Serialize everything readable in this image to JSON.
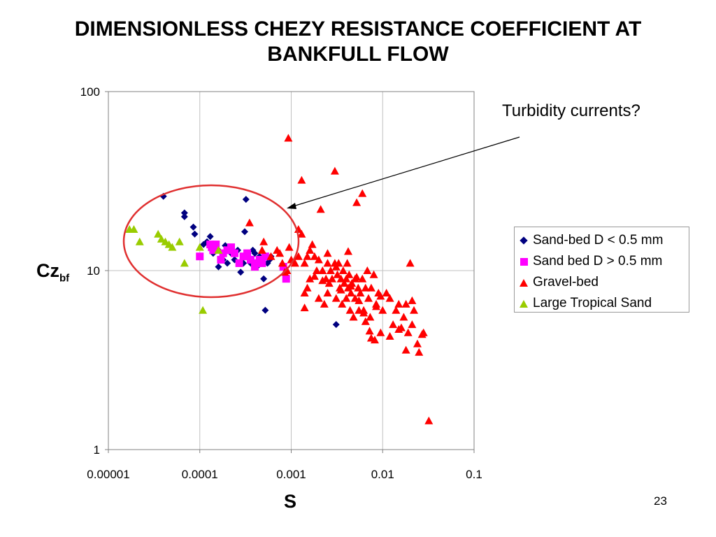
{
  "slide": {
    "title_line1": "DIMENSIONLESS CHEZY RESISTANCE COEFFICIENT AT",
    "title_line2": "BANKFULL FLOW",
    "page_number": "23",
    "annotation": "Turbidity currents?"
  },
  "colors": {
    "sand_small": "#000080",
    "sand_large": "#ff00ff",
    "gravel": "#ff0000",
    "tropical": "#99cc00",
    "ellipse": "#e03030"
  },
  "chart_data": {
    "type": "scatter",
    "title": "",
    "xlabel": "S",
    "ylabel_main": "Cz",
    "ylabel_sub": "bf",
    "xscale": "log",
    "yscale": "log",
    "xlim": [
      1e-05,
      0.1
    ],
    "ylim": [
      1,
      100
    ],
    "xticks": [
      "0.00001",
      "0.0001",
      "0.001",
      "0.01",
      "0.1"
    ],
    "yticks": [
      "1",
      "10",
      "100"
    ],
    "grid": true,
    "legend_position": "right",
    "series": [
      {
        "name": "Sand-bed D < 0.5 mm",
        "marker": "diamond",
        "color": "#000080",
        "x": [
          4e-05,
          6.8e-05,
          6.8e-05,
          8.5e-05,
          8.8e-05,
          0.00011,
          0.00012,
          0.00013,
          0.00014,
          0.00016,
          0.00016,
          0.00018,
          0.00019,
          0.0002,
          0.00021,
          0.00022,
          0.00024,
          0.00026,
          0.00028,
          0.0003,
          0.00031,
          0.00032,
          0.00034,
          0.00036,
          0.00038,
          0.0004,
          0.00042,
          0.00045,
          0.0005,
          0.00052,
          0.00055,
          0.00058,
          0.0006,
          0.0031
        ],
        "y": [
          26,
          21,
          20,
          17.5,
          16,
          14,
          14.5,
          15.5,
          12.5,
          13,
          10.5,
          11.5,
          13.8,
          11,
          13.5,
          12.5,
          11.5,
          13,
          9.8,
          11,
          16.5,
          25,
          12,
          11,
          13,
          12.5,
          10.5,
          12,
          9,
          6,
          11,
          11.5,
          12,
          5
        ]
      },
      {
        "name": "Sand bed D > 0.5 mm",
        "marker": "square",
        "color": "#ff00ff",
        "x": [
          0.0001,
          0.00013,
          0.000135,
          0.00014,
          0.00015,
          0.00017,
          0.00018,
          0.0002,
          0.00022,
          0.00024,
          0.00027,
          0.0003,
          0.00033,
          0.00036,
          0.0004,
          0.00042,
          0.00045,
          0.00048,
          0.00052,
          0.00082,
          0.00088
        ],
        "y": [
          12,
          14,
          13.5,
          13,
          14,
          11.5,
          12.5,
          13,
          13.5,
          12.5,
          11,
          12,
          12.5,
          11.5,
          10.5,
          11,
          11.5,
          11,
          12,
          10.5,
          9
        ]
      },
      {
        "name": "Gravel-bed",
        "marker": "triangle",
        "color": "#ff0000",
        "x": [
          0.00035,
          0.00048,
          0.0005,
          0.0006,
          0.0007,
          0.00075,
          0.0008,
          0.00085,
          0.0009,
          0.00093,
          0.00095,
          0.001,
          0.0011,
          0.0012,
          0.0013,
          0.0013,
          0.0014,
          0.0014,
          0.0015,
          0.0015,
          0.0016,
          0.0016,
          0.0017,
          0.0018,
          0.0019,
          0.002,
          0.002,
          0.0021,
          0.0022,
          0.0023,
          0.0024,
          0.0025,
          0.0025,
          0.0026,
          0.0027,
          0.0028,
          0.003,
          0.003,
          0.0031,
          0.0032,
          0.0033,
          0.0034,
          0.0035,
          0.0036,
          0.0037,
          0.0038,
          0.004,
          0.004,
          0.0041,
          0.0042,
          0.0043,
          0.0044,
          0.0045,
          0.0046,
          0.0048,
          0.005,
          0.005,
          0.0052,
          0.0054,
          0.0055,
          0.0057,
          0.006,
          0.006,
          0.0062,
          0.0065,
          0.0068,
          0.007,
          0.0073,
          0.0075,
          0.008,
          0.0085,
          0.009,
          0.0095,
          0.01,
          0.011,
          0.012,
          0.013,
          0.014,
          0.015,
          0.016,
          0.017,
          0.018,
          0.019,
          0.02,
          0.021,
          0.022,
          0.025,
          0.028,
          0.032,
          0.0031,
          0.0025,
          0.0035,
          0.0045,
          0.0055,
          0.0065,
          0.0075,
          0.0085,
          0.0095,
          0.0022,
          0.0018,
          0.0014,
          0.0012,
          0.0042,
          0.0052,
          0.0062,
          0.0072,
          0.0082,
          0.012,
          0.015,
          0.018,
          0.021,
          0.024,
          0.027
        ],
        "y": [
          18.5,
          13,
          14.5,
          12,
          13,
          12.5,
          11,
          9.8,
          10,
          55,
          13.5,
          11.5,
          11,
          12,
          32,
          16,
          11,
          7.5,
          12,
          8,
          13,
          9,
          14,
          12,
          10,
          11.5,
          7,
          22,
          10,
          6.5,
          9,
          11,
          7.5,
          8.5,
          10,
          9,
          36,
          11,
          7,
          9.5,
          11,
          8,
          9,
          6.5,
          10,
          8.5,
          9,
          7,
          11,
          8,
          9.5,
          6,
          7.5,
          8.5,
          5.5,
          9,
          7,
          24,
          8,
          6,
          7.5,
          27,
          9,
          6,
          8,
          10,
          7,
          5.5,
          8,
          9.5,
          6.5,
          7.5,
          4.5,
          6,
          7.5,
          7,
          5,
          6,
          6.5,
          4.8,
          5.5,
          6.5,
          4.5,
          11,
          5,
          6,
          3.5,
          4.5,
          1.45,
          10.5,
          12.5,
          7.8,
          8.2,
          6.8,
          5.2,
          4.2,
          6.3,
          7.2,
          8.8,
          9.3,
          6.2,
          17,
          12.8,
          9.2,
          5.8,
          4.6,
          4.1,
          4.3,
          4.7,
          3.6,
          6.8,
          3.9,
          4.4
        ]
      },
      {
        "name": "Large Tropical Sand",
        "marker": "triangle",
        "color": "#99cc00",
        "x": [
          1.7e-05,
          1.9e-05,
          2.2e-05,
          3.5e-05,
          3.8e-05,
          4.2e-05,
          4.6e-05,
          5e-05,
          6e-05,
          6.8e-05,
          0.0001,
          0.000108,
          0.00016
        ],
        "y": [
          17,
          17,
          14.5,
          16,
          15,
          14.5,
          14,
          13.5,
          14.5,
          11,
          13.5,
          6,
          13
        ]
      }
    ]
  }
}
